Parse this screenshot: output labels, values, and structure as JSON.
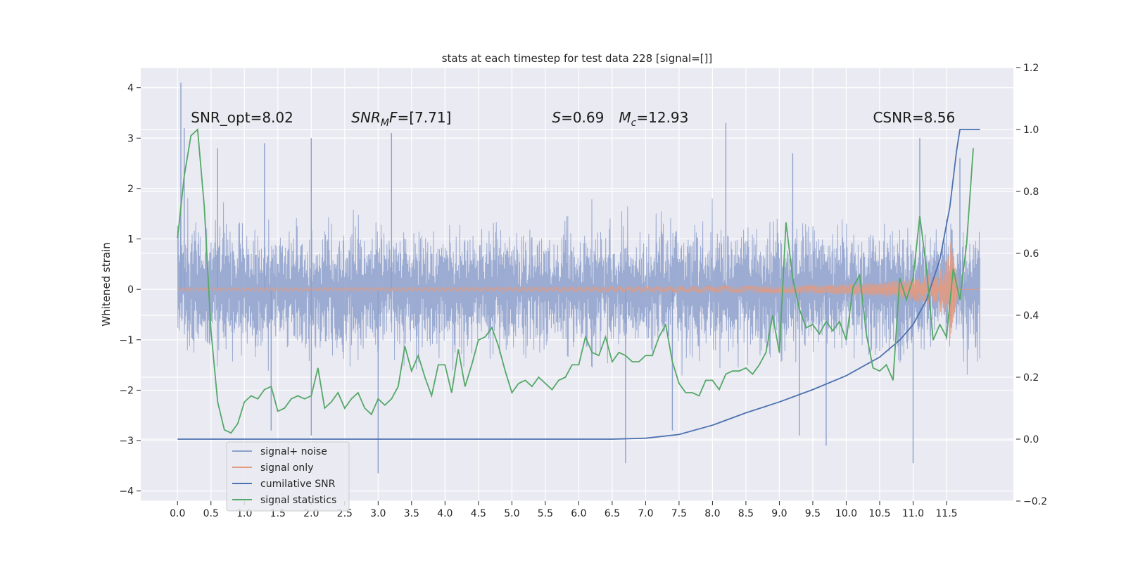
{
  "chart_data": {
    "type": "line",
    "title": "stats at each timestep for test data 228 [signal=[]]",
    "ylabel": "Whitened strain",
    "xlim": [
      -0.55,
      12.5
    ],
    "ylim_left": [
      -4.2,
      4.4
    ],
    "ylim_right": [
      -0.2,
      1.2
    ],
    "grid": true,
    "x_ticks": [
      "0.0",
      "0.5",
      "1.0",
      "1.5",
      "2.0",
      "2.5",
      "3.0",
      "3.5",
      "4.0",
      "4.5",
      "5.0",
      "5.5",
      "6.0",
      "6.5",
      "7.0",
      "7.5",
      "8.0",
      "8.5",
      "9.0",
      "9.5",
      "10.0",
      "10.5",
      "11.0",
      "11.5"
    ],
    "y_ticks_left": [
      "4",
      "3",
      "2",
      "1",
      "0",
      "−1",
      "−2",
      "−3",
      "−4"
    ],
    "y_ticks_right": [
      "1.2",
      "1.0",
      "0.8",
      "0.6",
      "0.4",
      "0.2",
      "0.0",
      "−0.2"
    ],
    "annotations": [
      {
        "id": "snr-opt",
        "text": "SNR_opt=8.02",
        "x": 0.2,
        "y": 3.3
      },
      {
        "id": "snr-mf",
        "parts": [
          {
            "t": "SNR",
            "i": true
          },
          {
            "t": "M",
            "i": true,
            "sub": true
          },
          {
            "t": "F",
            "i": true
          },
          {
            "t": "=[7.71]",
            "i": false
          }
        ],
        "x": 2.6,
        "y": 3.3
      },
      {
        "id": "s-val",
        "parts": [
          {
            "t": "S",
            "i": true
          },
          {
            "t": "=0.69",
            "i": false
          }
        ],
        "x": 5.6,
        "y": 3.3
      },
      {
        "id": "mc-val",
        "parts": [
          {
            "t": "M",
            "i": true
          },
          {
            "t": "c",
            "i": true,
            "sub": true
          },
          {
            "t": "=12.93",
            "i": false
          }
        ],
        "x": 6.6,
        "y": 3.3
      },
      {
        "id": "csnr",
        "text": "CSNR=8.56",
        "x": 10.4,
        "y": 3.3
      }
    ],
    "legend": {
      "position": "lower-left",
      "entries": [
        {
          "name": "signal+ noise",
          "color": "#8da0cb"
        },
        {
          "name": "signal only",
          "color": "#e49a7e"
        },
        {
          "name": "cumilative SNR",
          "color": "#4c72b0"
        },
        {
          "name": "signal statistics",
          "color": "#55a868"
        }
      ]
    },
    "series": [
      {
        "name": "signal+ noise",
        "axis": "left",
        "color": "#8da0cb",
        "envelope": {
          "x_start": 0.0,
          "x_end": 12.0,
          "upper_typical": 1.6,
          "lower_typical": -1.6,
          "max": 4.1,
          "min": -3.6
        },
        "spikes": [
          [
            0.05,
            4.1
          ],
          [
            0.1,
            3.2
          ],
          [
            0.6,
            2.8
          ],
          [
            1.3,
            2.9
          ],
          [
            2.0,
            3.0
          ],
          [
            3.2,
            3.1
          ],
          [
            8.2,
            3.3
          ],
          [
            9.2,
            2.7
          ],
          [
            11.1,
            3.0
          ],
          [
            11.7,
            2.6
          ],
          [
            3.0,
            -3.65
          ],
          [
            6.7,
            -3.45
          ],
          [
            9.7,
            -3.1
          ],
          [
            11.0,
            -3.45
          ],
          [
            1.4,
            -2.8
          ],
          [
            2.0,
            -2.9
          ],
          [
            7.4,
            -2.8
          ],
          [
            9.3,
            -2.9
          ]
        ]
      },
      {
        "name": "signal only",
        "axis": "left",
        "color": "#e49a7e",
        "chirp": {
          "start": 0.0,
          "end": 11.68,
          "amp_at_end": 1.0,
          "amp_at_10": 0.1
        }
      },
      {
        "name": "cumilative SNR",
        "axis": "right",
        "color": "#4c72b0",
        "x": [
          0.0,
          6.5,
          7.0,
          7.5,
          8.0,
          8.5,
          9.0,
          9.5,
          10.0,
          10.5,
          10.8,
          11.0,
          11.2,
          11.4,
          11.55,
          11.65,
          11.7,
          12.0
        ],
        "y": [
          0.0,
          0.0,
          0.003,
          0.015,
          0.045,
          0.085,
          0.12,
          0.16,
          0.205,
          0.265,
          0.32,
          0.37,
          0.45,
          0.58,
          0.75,
          0.93,
          1.0,
          1.0
        ]
      },
      {
        "name": "signal statistics",
        "axis": "right",
        "color": "#55a868",
        "x": [
          0.0,
          0.1,
          0.2,
          0.3,
          0.4,
          0.5,
          0.6,
          0.7,
          0.8,
          0.9,
          1.0,
          1.1,
          1.2,
          1.3,
          1.4,
          1.5,
          1.6,
          1.7,
          1.8,
          1.9,
          2.0,
          2.1,
          2.2,
          2.3,
          2.4,
          2.5,
          2.6,
          2.7,
          2.8,
          2.9,
          3.0,
          3.1,
          3.2,
          3.3,
          3.4,
          3.5,
          3.6,
          3.7,
          3.8,
          3.9,
          4.0,
          4.1,
          4.2,
          4.3,
          4.4,
          4.5,
          4.6,
          4.7,
          4.8,
          4.9,
          5.0,
          5.1,
          5.2,
          5.3,
          5.4,
          5.5,
          5.6,
          5.7,
          5.8,
          5.9,
          6.0,
          6.1,
          6.2,
          6.3,
          6.4,
          6.5,
          6.6,
          6.7,
          6.8,
          6.9,
          7.0,
          7.1,
          7.2,
          7.3,
          7.4,
          7.5,
          7.6,
          7.7,
          7.8,
          7.9,
          8.0,
          8.1,
          8.2,
          8.3,
          8.4,
          8.5,
          8.6,
          8.7,
          8.8,
          8.9,
          9.0,
          9.1,
          9.2,
          9.3,
          9.4,
          9.5,
          9.6,
          9.7,
          9.8,
          9.9,
          10.0,
          10.1,
          10.2,
          10.3,
          10.4,
          10.5,
          10.6,
          10.7,
          10.8,
          10.9,
          11.0,
          11.1,
          11.2,
          11.3,
          11.4,
          11.5,
          11.6,
          11.7,
          11.8,
          11.9
        ],
        "y": [
          0.65,
          0.85,
          0.98,
          1.0,
          0.75,
          0.35,
          0.12,
          0.03,
          0.02,
          0.05,
          0.12,
          0.14,
          0.13,
          0.16,
          0.17,
          0.09,
          0.1,
          0.13,
          0.14,
          0.13,
          0.14,
          0.23,
          0.1,
          0.12,
          0.15,
          0.1,
          0.13,
          0.15,
          0.1,
          0.08,
          0.13,
          0.11,
          0.13,
          0.17,
          0.3,
          0.22,
          0.27,
          0.2,
          0.14,
          0.24,
          0.24,
          0.15,
          0.29,
          0.17,
          0.24,
          0.32,
          0.33,
          0.36,
          0.3,
          0.22,
          0.15,
          0.18,
          0.19,
          0.17,
          0.2,
          0.18,
          0.16,
          0.19,
          0.2,
          0.24,
          0.24,
          0.33,
          0.28,
          0.27,
          0.33,
          0.25,
          0.28,
          0.27,
          0.25,
          0.25,
          0.27,
          0.27,
          0.33,
          0.37,
          0.25,
          0.18,
          0.15,
          0.15,
          0.14,
          0.19,
          0.19,
          0.16,
          0.21,
          0.22,
          0.22,
          0.23,
          0.21,
          0.24,
          0.28,
          0.4,
          0.28,
          0.7,
          0.52,
          0.42,
          0.36,
          0.37,
          0.34,
          0.38,
          0.35,
          0.38,
          0.32,
          0.49,
          0.53,
          0.34,
          0.23,
          0.22,
          0.24,
          0.19,
          0.52,
          0.45,
          0.52,
          0.72,
          0.55,
          0.32,
          0.37,
          0.33,
          0.55,
          0.45,
          0.63,
          0.94
        ]
      }
    ]
  }
}
